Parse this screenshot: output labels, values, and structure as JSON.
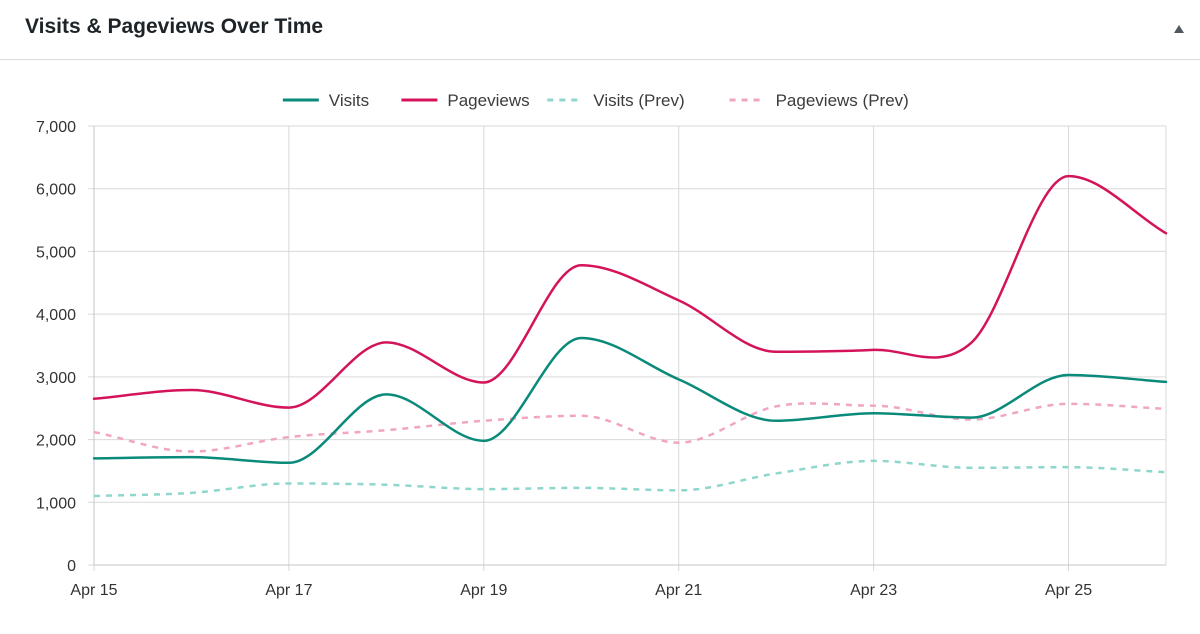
{
  "panel": {
    "title": "Visits & Pageviews Over Time",
    "toggle_icon": "triangle-up-icon"
  },
  "chart_data": {
    "type": "line",
    "title": "",
    "xlabel": "",
    "ylabel": "",
    "ylim": [
      0,
      7000
    ],
    "yticks": [
      0,
      1000,
      2000,
      3000,
      4000,
      5000,
      6000,
      7000
    ],
    "ytick_labels": [
      "0",
      "1,000",
      "2,000",
      "3,000",
      "4,000",
      "5,000",
      "6,000",
      "7,000"
    ],
    "categories": [
      "Apr 15",
      "Apr 16",
      "Apr 17",
      "Apr 18",
      "Apr 19",
      "Apr 20",
      "Apr 21",
      "Apr 22",
      "Apr 23",
      "Apr 24",
      "Apr 25",
      "Apr 26"
    ],
    "xtick_labels": [
      "Apr 15",
      "",
      "Apr 17",
      "",
      "Apr 19",
      "",
      "Apr 21",
      "",
      "Apr 23",
      "",
      "Apr 25",
      ""
    ],
    "grid": true,
    "legend_position": "top-center",
    "series": [
      {
        "name": "Visits",
        "color": "#0a8a7a",
        "dashed": false,
        "values": [
          1700,
          1720,
          1630,
          2720,
          1980,
          3620,
          2960,
          2300,
          2420,
          2350,
          3030,
          2920
        ]
      },
      {
        "name": "Pageviews",
        "color": "#d4145a",
        "dashed": false,
        "values": [
          2650,
          2790,
          2510,
          3550,
          2910,
          4780,
          4220,
          3400,
          3430,
          3540,
          6200,
          5290
        ]
      },
      {
        "name": "Visits (Prev)",
        "color": "#8fd6cc",
        "dashed": true,
        "values": [
          1100,
          1150,
          1300,
          1280,
          1210,
          1230,
          1190,
          1460,
          1660,
          1550,
          1560,
          1480
        ]
      },
      {
        "name": "Pageviews (Prev)",
        "color": "#f0a6c2",
        "dashed": true,
        "values": [
          2120,
          1810,
          2040,
          2150,
          2300,
          2380,
          1950,
          2530,
          2540,
          2320,
          2570,
          2490
        ]
      }
    ]
  }
}
